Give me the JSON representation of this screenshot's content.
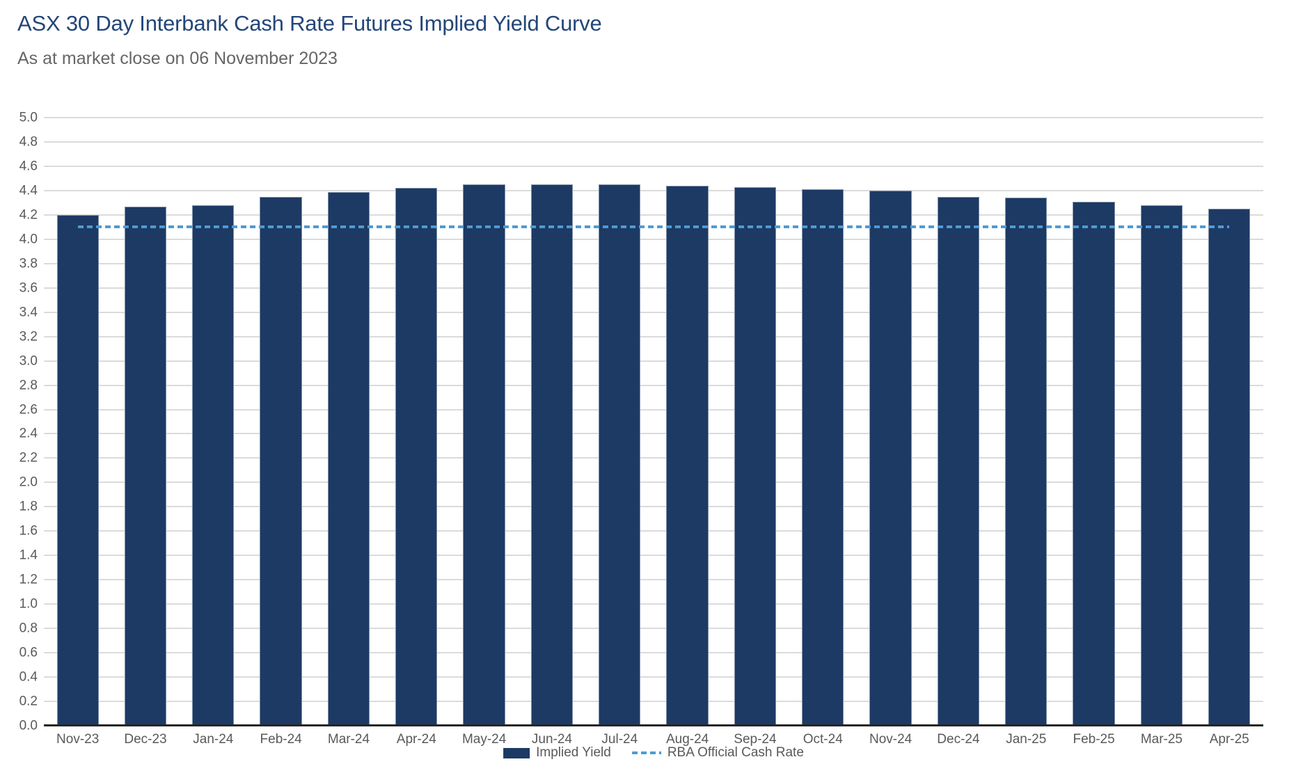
{
  "chart_data": {
    "type": "bar",
    "title": "ASX 30 Day Interbank Cash Rate Futures Implied Yield Curve",
    "subtitle": "As at market close on 06 November 2023",
    "categories": [
      "Nov-23",
      "Dec-23",
      "Jan-24",
      "Feb-24",
      "Mar-24",
      "Apr-24",
      "May-24",
      "Jun-24",
      "Jul-24",
      "Aug-24",
      "Sep-24",
      "Oct-24",
      "Nov-24",
      "Dec-24",
      "Jan-25",
      "Feb-25",
      "Mar-25",
      "Apr-25"
    ],
    "series": [
      {
        "name": "Implied Yield",
        "type": "bar",
        "color": "#1C3A64",
        "values": [
          4.2,
          4.27,
          4.28,
          4.35,
          4.39,
          4.42,
          4.45,
          4.45,
          4.45,
          4.44,
          4.43,
          4.41,
          4.4,
          4.35,
          4.34,
          4.31,
          4.28,
          4.25
        ]
      },
      {
        "name": "RBA Official Cash Rate",
        "type": "dashed-line",
        "color": "#4E9AD4",
        "value": 4.1,
        "extent": "first-bar-center-to-last-bar-center"
      }
    ],
    "ylabel": "",
    "xlabel": "",
    "ylim": [
      0,
      5
    ],
    "ytick_step": 0.2,
    "grid": true,
    "legend_position": "bottom-center"
  },
  "colors": {
    "bar": "#1C3A64",
    "rba_line": "#4E9AD4",
    "title": "#234679",
    "subtitle": "#666666",
    "axis_text": "#595959",
    "gridline": "#DBDBDB",
    "axis_line": "#262626"
  }
}
